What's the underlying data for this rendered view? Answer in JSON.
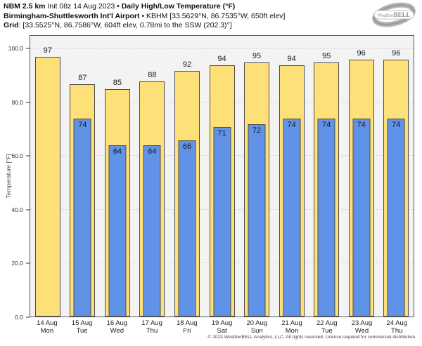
{
  "header": {
    "lines": [
      {
        "segments": [
          {
            "text": "NBM 2.5 km",
            "bold": true
          },
          {
            "text": " Init 08z 14 Aug 2023 ",
            "bold": false
          },
          {
            "text": "• Daily High/Low Temperature (°F)",
            "bold": true
          }
        ]
      },
      {
        "segments": [
          {
            "text": "Birmingham-Shuttlesworth Int'l Airport",
            "bold": true
          },
          {
            "text": " • KBHM [33.5629°N, 86.7535°W, 650ft elev]",
            "bold": false
          }
        ]
      },
      {
        "segments": [
          {
            "text": "Grid",
            "bold": true
          },
          {
            "text": ": [33.5525°N, 86.7586°W, 604ft elev, 0.78mi to the SSW (202.3)°]",
            "bold": false
          }
        ]
      }
    ]
  },
  "logo": {
    "brand_weather": "Weather",
    "brand_bell": "BELL"
  },
  "footer": {
    "copyright": "© 2023 WeatherBELL Analytics, LLC. All rights reserved. License required for commercial distribution."
  },
  "chart_data": {
    "type": "bar",
    "title": "NBM 2.5 km Daily High/Low Temperature (°F) — Birmingham-Shuttlesworth Int'l Airport (KBHM)",
    "xlabel": "",
    "ylabel": "Temperature [°F]",
    "ylim": [
      0,
      105
    ],
    "yticks": [
      0,
      20,
      40,
      60,
      80,
      100
    ],
    "ytick_labels": [
      "0.0",
      "20.0",
      "40.0",
      "60.0",
      "80.0",
      "100.0"
    ],
    "grid": "horizontal dashed",
    "legend": "none",
    "plot_bg": "#f3f3f3",
    "categories": [
      {
        "date": "14 Aug",
        "day": "Mon"
      },
      {
        "date": "15 Aug",
        "day": "Tue"
      },
      {
        "date": "16 Aug",
        "day": "Wed"
      },
      {
        "date": "17 Aug",
        "day": "Thu"
      },
      {
        "date": "18 Aug",
        "day": "Fri"
      },
      {
        "date": "19 Aug",
        "day": "Sat"
      },
      {
        "date": "20 Aug",
        "day": "Sun"
      },
      {
        "date": "21 Aug",
        "day": "Mon"
      },
      {
        "date": "22 Aug",
        "day": "Tue"
      },
      {
        "date": "23 Aug",
        "day": "Wed"
      },
      {
        "date": "24 Aug",
        "day": "Thu"
      }
    ],
    "series": [
      {
        "name": "Daily High",
        "color": "#FDE077",
        "values": [
          97,
          87,
          85,
          88,
          92,
          94,
          95,
          94,
          95,
          96,
          96
        ]
      },
      {
        "name": "Daily Low",
        "color": "#6092E8",
        "values": [
          null,
          74,
          64,
          64,
          66,
          71,
          72,
          74,
          74,
          74,
          74
        ]
      }
    ]
  }
}
